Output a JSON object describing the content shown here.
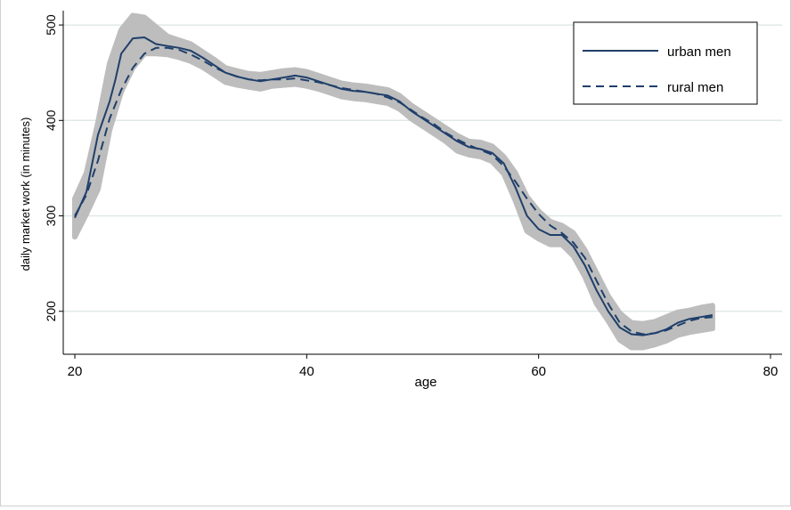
{
  "chart_data": {
    "type": "line",
    "xlabel": "age",
    "ylabel": "daily market work (in minutes)",
    "xlim": [
      19,
      81
    ],
    "ylim": [
      155,
      515
    ],
    "xticks": [
      20,
      40,
      60,
      80
    ],
    "yticks": [
      200,
      300,
      400,
      500
    ],
    "grid": "horizontal",
    "legend_position": "top-right",
    "colors": {
      "line": "#1f3f6a",
      "band": "#bdbdbd",
      "grid": "#dfe9e8"
    },
    "series": [
      {
        "name": "urban men",
        "style": "solid",
        "points": [
          [
            20,
            298
          ],
          [
            21,
            325
          ],
          [
            22,
            385
          ],
          [
            23,
            420
          ],
          [
            23.5,
            443
          ],
          [
            24,
            470
          ],
          [
            25,
            486
          ],
          [
            26,
            487
          ],
          [
            27,
            480
          ],
          [
            28,
            478
          ],
          [
            29,
            476
          ],
          [
            30,
            473
          ],
          [
            31,
            466
          ],
          [
            32,
            458
          ],
          [
            33,
            450
          ],
          [
            34,
            446
          ],
          [
            35,
            443
          ],
          [
            36,
            441
          ],
          [
            37,
            443
          ],
          [
            38,
            445
          ],
          [
            39,
            447
          ],
          [
            40,
            445
          ],
          [
            41,
            441
          ],
          [
            42,
            437
          ],
          [
            43,
            433
          ],
          [
            44,
            431
          ],
          [
            45,
            430
          ],
          [
            46,
            428
          ],
          [
            47,
            426
          ],
          [
            48,
            420
          ],
          [
            49,
            410
          ],
          [
            50,
            402
          ],
          [
            51,
            394
          ],
          [
            52,
            386
          ],
          [
            53,
            378
          ],
          [
            54,
            372
          ],
          [
            55,
            370
          ],
          [
            56,
            366
          ],
          [
            57,
            355
          ],
          [
            58,
            330
          ],
          [
            59,
            300
          ],
          [
            60,
            286
          ],
          [
            61,
            280
          ],
          [
            62,
            280
          ],
          [
            63,
            268
          ],
          [
            64,
            248
          ],
          [
            65,
            222
          ],
          [
            66,
            200
          ],
          [
            67,
            183
          ],
          [
            68,
            176
          ],
          [
            69,
            175
          ],
          [
            70,
            177
          ],
          [
            71,
            181
          ],
          [
            72,
            188
          ],
          [
            73,
            192
          ],
          [
            74,
            194
          ],
          [
            75,
            196
          ]
        ]
      },
      {
        "name": "rural men",
        "style": "dashed",
        "points": [
          [
            20,
            300
          ],
          [
            21,
            322
          ],
          [
            22,
            358
          ],
          [
            23,
            402
          ],
          [
            24,
            432
          ],
          [
            25,
            455
          ],
          [
            26,
            470
          ],
          [
            27,
            476
          ],
          [
            28,
            476
          ],
          [
            29,
            474
          ],
          [
            30,
            469
          ],
          [
            31,
            463
          ],
          [
            32,
            456
          ],
          [
            33,
            450
          ],
          [
            34,
            446
          ],
          [
            35,
            443
          ],
          [
            36,
            442
          ],
          [
            37,
            443
          ],
          [
            38,
            443
          ],
          [
            39,
            444
          ],
          [
            40,
            442
          ],
          [
            41,
            440
          ],
          [
            42,
            437
          ],
          [
            43,
            434
          ],
          [
            44,
            432
          ],
          [
            45,
            430
          ],
          [
            46,
            428
          ],
          [
            47,
            424
          ],
          [
            48,
            419
          ],
          [
            49,
            411
          ],
          [
            50,
            403
          ],
          [
            51,
            396
          ],
          [
            52,
            387
          ],
          [
            53,
            380
          ],
          [
            54,
            374
          ],
          [
            55,
            369
          ],
          [
            56,
            364
          ],
          [
            57,
            352
          ],
          [
            58,
            336
          ],
          [
            59,
            318
          ],
          [
            60,
            302
          ],
          [
            61,
            290
          ],
          [
            62,
            282
          ],
          [
            63,
            272
          ],
          [
            64,
            256
          ],
          [
            65,
            232
          ],
          [
            66,
            208
          ],
          [
            67,
            188
          ],
          [
            68,
            179
          ],
          [
            69,
            176
          ],
          [
            70,
            177
          ],
          [
            71,
            180
          ],
          [
            72,
            185
          ],
          [
            73,
            190
          ],
          [
            74,
            193
          ],
          [
            75,
            194
          ]
        ]
      }
    ],
    "band": {
      "upper": [
        [
          20,
          318
        ],
        [
          21,
          345
        ],
        [
          22,
          398
        ],
        [
          23,
          460
        ],
        [
          24,
          495
        ],
        [
          25,
          510
        ],
        [
          26,
          508
        ],
        [
          27,
          498
        ],
        [
          28,
          488
        ],
        [
          29,
          484
        ],
        [
          30,
          480
        ],
        [
          31,
          472
        ],
        [
          32,
          464
        ],
        [
          33,
          455
        ],
        [
          34,
          452
        ],
        [
          35,
          449
        ],
        [
          36,
          448
        ],
        [
          37,
          450
        ],
        [
          38,
          452
        ],
        [
          39,
          453
        ],
        [
          40,
          451
        ],
        [
          41,
          447
        ],
        [
          42,
          443
        ],
        [
          43,
          439
        ],
        [
          44,
          437
        ],
        [
          45,
          436
        ],
        [
          46,
          434
        ],
        [
          47,
          432
        ],
        [
          48,
          426
        ],
        [
          49,
          416
        ],
        [
          50,
          408
        ],
        [
          51,
          400
        ],
        [
          52,
          392
        ],
        [
          53,
          384
        ],
        [
          54,
          378
        ],
        [
          55,
          377
        ],
        [
          56,
          373
        ],
        [
          57,
          362
        ],
        [
          58,
          345
        ],
        [
          59,
          320
        ],
        [
          60,
          305
        ],
        [
          61,
          294
        ],
        [
          62,
          290
        ],
        [
          63,
          282
        ],
        [
          64,
          264
        ],
        [
          65,
          240
        ],
        [
          66,
          216
        ],
        [
          67,
          198
        ],
        [
          68,
          188
        ],
        [
          69,
          187
        ],
        [
          70,
          189
        ],
        [
          71,
          194
        ],
        [
          72,
          199
        ],
        [
          73,
          201
        ],
        [
          74,
          204
        ],
        [
          75,
          206
        ]
      ],
      "lower": [
        [
          20,
          278
        ],
        [
          21,
          302
        ],
        [
          22,
          328
        ],
        [
          23,
          390
        ],
        [
          24,
          430
        ],
        [
          25,
          455
        ],
        [
          26,
          470
        ],
        [
          27,
          470
        ],
        [
          28,
          469
        ],
        [
          29,
          466
        ],
        [
          30,
          462
        ],
        [
          31,
          456
        ],
        [
          32,
          448
        ],
        [
          33,
          440
        ],
        [
          34,
          437
        ],
        [
          35,
          435
        ],
        [
          36,
          433
        ],
        [
          37,
          436
        ],
        [
          38,
          437
        ],
        [
          39,
          438
        ],
        [
          40,
          436
        ],
        [
          41,
          433
        ],
        [
          42,
          429
        ],
        [
          43,
          425
        ],
        [
          44,
          423
        ],
        [
          45,
          422
        ],
        [
          46,
          420
        ],
        [
          47,
          418
        ],
        [
          48,
          412
        ],
        [
          49,
          402
        ],
        [
          50,
          394
        ],
        [
          51,
          386
        ],
        [
          52,
          378
        ],
        [
          53,
          368
        ],
        [
          54,
          364
        ],
        [
          55,
          362
        ],
        [
          56,
          357
        ],
        [
          57,
          344
        ],
        [
          58,
          316
        ],
        [
          59,
          284
        ],
        [
          60,
          276
        ],
        [
          61,
          270
        ],
        [
          62,
          270
        ],
        [
          63,
          258
        ],
        [
          64,
          236
        ],
        [
          65,
          208
        ],
        [
          66,
          190
        ],
        [
          67,
          170
        ],
        [
          68,
          162
        ],
        [
          69,
          162
        ],
        [
          70,
          165
        ],
        [
          71,
          169
        ],
        [
          72,
          175
        ],
        [
          73,
          178
        ],
        [
          74,
          180
        ],
        [
          75,
          182
        ]
      ]
    }
  }
}
